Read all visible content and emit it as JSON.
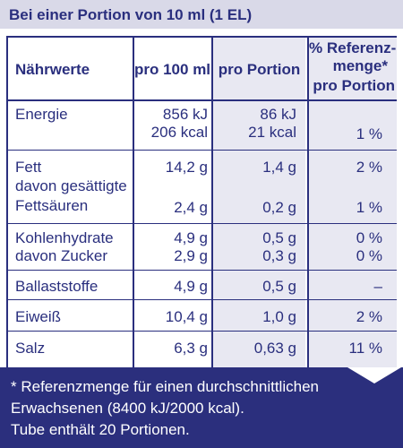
{
  "header": {
    "title": "Bei einer Portion von 10 ml (1 EL)"
  },
  "table": {
    "headers": {
      "nutrient": "Nährwerte",
      "per100": "pro 100 ml",
      "perPortion": "pro Portion",
      "ref_line1": "% Referenz-",
      "ref_line2": "menge*",
      "ref_line3": "pro Portion"
    },
    "rows": {
      "energie": {
        "label": "Energie",
        "p100_a": "856 kJ",
        "p100_b": "206 kcal",
        "pp_a": "86 kJ",
        "pp_b": "21 kcal",
        "ref": "1 %"
      },
      "fett": {
        "label": "Fett",
        "p100": "14,2 g",
        "pp": "1,4 g",
        "ref": "2 %"
      },
      "fett_sub_line1": "davon gesättigte",
      "fett_sub_line2": "Fettsäuren",
      "fettsaeuren": {
        "p100": "2,4 g",
        "pp": "0,2 g",
        "ref": "1 %"
      },
      "kh": {
        "label": "Kohlenhydrate",
        "p100": "4,9 g",
        "pp": "0,5 g",
        "ref": "0 %"
      },
      "zucker": {
        "label": "davon Zucker",
        "p100": "2,9 g",
        "pp": "0,3 g",
        "ref": "0 %"
      },
      "ballast": {
        "label": "Ballaststoffe",
        "p100": "4,9 g",
        "pp": "0,5 g",
        "ref": "–"
      },
      "eiweiss": {
        "label": "Eiweiß",
        "p100": "10,4 g",
        "pp": "1,0 g",
        "ref": "2 %"
      },
      "salz": {
        "label": "Salz",
        "p100": "6,3 g",
        "pp": "0,63 g",
        "ref": "11 %"
      }
    }
  },
  "footer": {
    "line1": "* Referenzmenge für einen durchschnittlichen",
    "line2": "Erwachsenen (8400 kJ/2000 kcal).",
    "line3": "Tube enthält 20 Portionen."
  },
  "colors": {
    "navy": "#2a2f7e",
    "shade": "#e8e8f2",
    "header_bg": "#d9d9e8"
  }
}
